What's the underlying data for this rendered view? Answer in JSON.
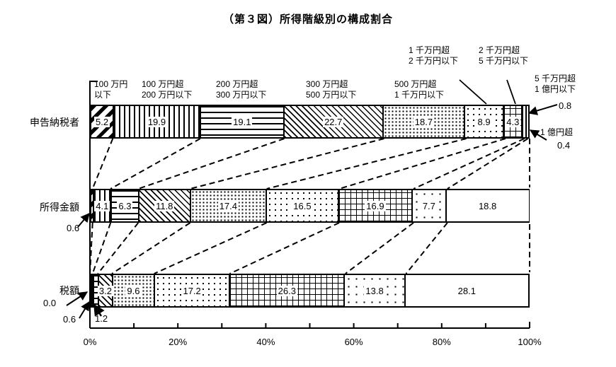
{
  "title": "（第３図）所得階級別の構成割合",
  "colors": {
    "ink": "#000000",
    "background": "#ffffff"
  },
  "chart_data": {
    "type": "bar",
    "subtype": "horizontal-stacked-percentage",
    "title": "（第３図）所得階級別の構成割合",
    "unit": "%",
    "categories": [
      "100万円以下",
      "100万円超200万円以下",
      "200万円超300万円以下",
      "300万円超500万円以下",
      "500万円超1千万円以下",
      "1千万円超2千万円以下",
      "2千万円超5千万円以下",
      "5千万円超1億円以下",
      "1億円超"
    ],
    "category_patterns": [
      "diagonal-wide",
      "vertical-lines",
      "horizontal-lines",
      "diagonal-hatch",
      "dots-dense",
      "dots-sparse",
      "dotted-grid",
      "dots-wide",
      "plain"
    ],
    "series": [
      {
        "id": "shinkoku-nozeisha",
        "name": "申告納税者",
        "values": [
          5.2,
          19.9,
          19.1,
          22.7,
          18.7,
          8.9,
          4.3,
          0.8,
          0.4
        ]
      },
      {
        "id": "shotoku-kingaku",
        "name": "所得金額",
        "values": [
          0.6,
          4.1,
          6.3,
          11.8,
          17.4,
          16.5,
          16.9,
          7.7,
          18.8
        ]
      },
      {
        "id": "zeigaku",
        "name": "税額",
        "values": [
          0.0,
          0.6,
          1.2,
          3.2,
          9.6,
          17.2,
          26.3,
          13.8,
          28.1
        ]
      }
    ],
    "x_axis": {
      "range": [
        0,
        100
      ],
      "minor_tick_interval": 10,
      "tick_labels": [
        "0%",
        "20%",
        "40%",
        "60%",
        "80%",
        "100%"
      ],
      "grid": false
    },
    "legend_position": "none"
  },
  "row_labels": [
    "申告納税者",
    "所得金額",
    "税額"
  ],
  "header_labels": [
    {
      "lines": [
        "100 万円",
        "以下"
      ]
    },
    {
      "lines": [
        "100 万円超",
        "200 万円以下"
      ]
    },
    {
      "lines": [
        "200 万円超",
        "300 万円以下"
      ]
    },
    {
      "lines": [
        "300 万円超",
        "500 万円以下"
      ]
    },
    {
      "lines": [
        "500 万円超",
        "1 千万円以下"
      ]
    },
    {
      "lines": [
        "1 千万円超",
        "2 千万円以下"
      ]
    },
    {
      "lines": [
        "2 千万円超",
        "5 千万円以下"
      ]
    },
    {
      "lines": [
        "5 千万円超",
        "1 億円以下"
      ]
    },
    {
      "lines": [
        "1 億円超"
      ]
    }
  ],
  "callouts": [
    {
      "id": "taxpayers-50m-100m",
      "text": "0.8"
    },
    {
      "id": "taxpayers-over-100m",
      "text": "0.4"
    },
    {
      "id": "income-under-1m",
      "text": "0.6"
    },
    {
      "id": "tax-under-1m",
      "text": "0.0"
    },
    {
      "id": "tax-1m-2m",
      "text": "0.6"
    },
    {
      "id": "tax-2m-3m",
      "text": "1.2"
    }
  ]
}
